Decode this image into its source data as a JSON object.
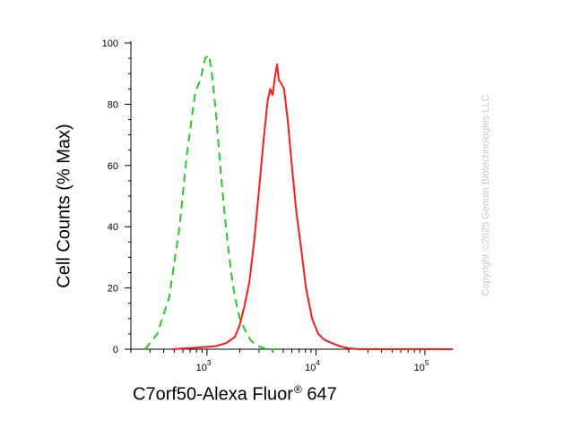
{
  "chart_data": {
    "type": "line",
    "xlabel": "C7orf50-Alexa Fluor",
    "xlabel_superscript": "®",
    "xlabel_suffix": "647",
    "ylabel": "Cell Counts (% Max)",
    "x_scale": "log",
    "xlim": [
      200,
      180000
    ],
    "ylim": [
      0,
      100
    ],
    "y_ticks": [
      "0",
      "20",
      "40",
      "60",
      "80",
      "100"
    ],
    "x_ticks": [
      {
        "base": "10",
        "exp": "3"
      },
      {
        "base": "10",
        "exp": "4"
      },
      {
        "base": "10",
        "exp": "5"
      }
    ],
    "grid": false,
    "series": [
      {
        "color": "#22cc22",
        "dash": "dashed",
        "x": [
          270,
          350,
          450,
          560,
          650,
          780,
          870,
          960,
          1040,
          1100,
          1200,
          1350,
          1500,
          1650,
          1800,
          2000,
          2250,
          2500,
          2800,
          3200,
          3600,
          4200
        ],
        "y": [
          0,
          5,
          17,
          40,
          63,
          84,
          88,
          95,
          96,
          91,
          78,
          56,
          39,
          26,
          17,
          10,
          6,
          3,
          1.5,
          0.5,
          0,
          0
        ]
      },
      {
        "color": "#ff1a1a",
        "dash": "solid",
        "x": [
          480,
          800,
          1200,
          1500,
          1800,
          2000,
          2200,
          2450,
          2700,
          3000,
          3300,
          3600,
          3800,
          4000,
          4200,
          4400,
          4550,
          4750,
          5100,
          5500,
          6000,
          6600,
          7300,
          8100,
          9200,
          10500,
          12000,
          14000,
          16500,
          20000,
          25000,
          40000,
          80000,
          180000
        ],
        "y": [
          0,
          0.5,
          1,
          2,
          4,
          8,
          14,
          22,
          35,
          52,
          68,
          81,
          85,
          83,
          89,
          93,
          88,
          87,
          85,
          75,
          60,
          45,
          33,
          20,
          10,
          5,
          3,
          2,
          1,
          0.3,
          0,
          0,
          0,
          0
        ]
      }
    ]
  },
  "watermark": "Copyright ©2025 Genuin Biotechnologies LLC",
  "colors": {
    "axis": "#000000",
    "watermark": "#c8c8c8"
  }
}
